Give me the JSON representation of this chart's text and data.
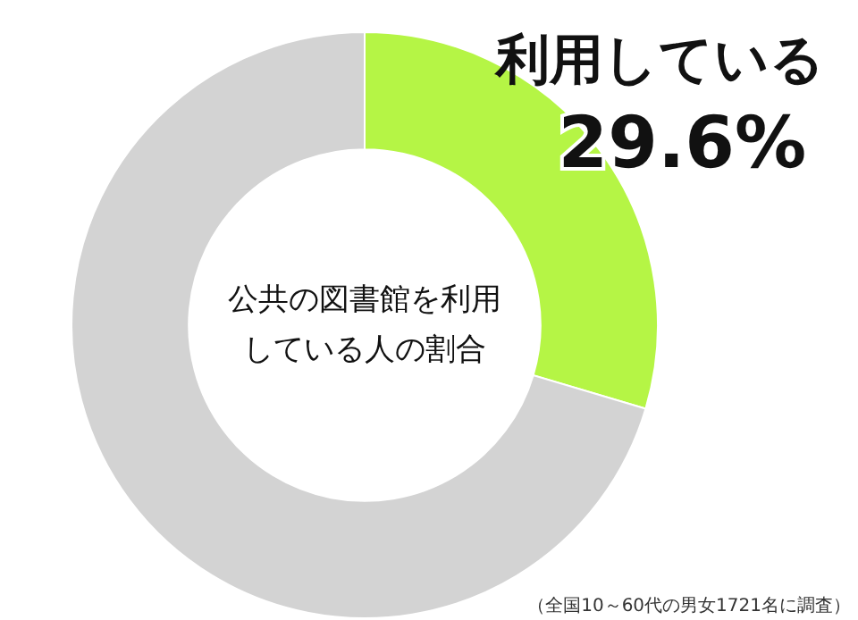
{
  "chart_data": {
    "type": "donut",
    "title": "公共の図書館を利用している人の割合",
    "categories": [
      "利用している",
      null
    ],
    "values": [
      29.6,
      70.4
    ],
    "colors": [
      "#b5f545",
      "#d3d3d3"
    ],
    "value_labels": [
      "29.6%",
      null
    ],
    "annotations": [
      "（全国10～60代の男女1721名に調査）"
    ]
  }
}
